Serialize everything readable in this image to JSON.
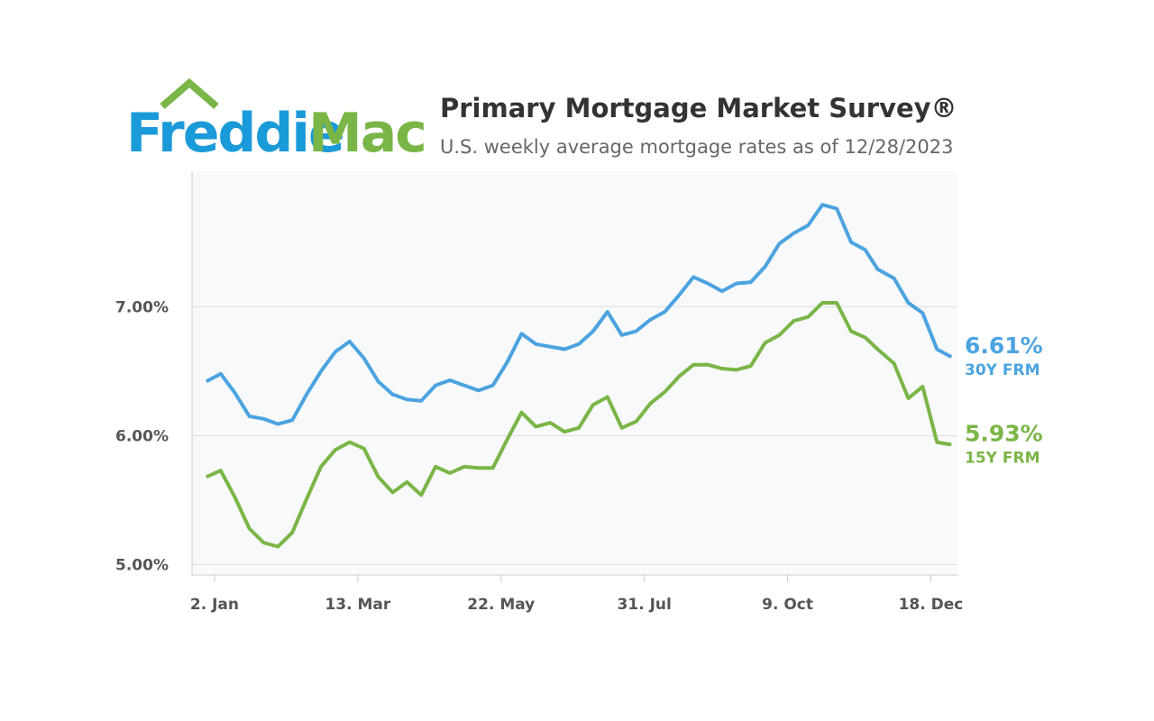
{
  "logo": {
    "part1": "Freddie",
    "part2": "Mac"
  },
  "chart_data": {
    "type": "line",
    "title": "Primary Mortgage Market Survey®",
    "subtitle": "U.S. weekly average mortgage rates as of 12/28/2023",
    "x": [
      "2022-12-29",
      "2023-01-05",
      "2023-01-12",
      "2023-01-19",
      "2023-01-26",
      "2023-02-02",
      "2023-02-09",
      "2023-02-16",
      "2023-02-23",
      "2023-03-02",
      "2023-03-09",
      "2023-03-16",
      "2023-03-23",
      "2023-03-30",
      "2023-04-06",
      "2023-04-13",
      "2023-04-20",
      "2023-04-27",
      "2023-05-04",
      "2023-05-11",
      "2023-05-18",
      "2023-05-25",
      "2023-06-01",
      "2023-06-08",
      "2023-06-15",
      "2023-06-22",
      "2023-06-29",
      "2023-07-06",
      "2023-07-13",
      "2023-07-20",
      "2023-07-27",
      "2023-08-03",
      "2023-08-10",
      "2023-08-17",
      "2023-08-24",
      "2023-08-31",
      "2023-09-07",
      "2023-09-14",
      "2023-09-21",
      "2023-09-28",
      "2023-10-05",
      "2023-10-12",
      "2023-10-19",
      "2023-10-26",
      "2023-11-02",
      "2023-11-09",
      "2023-11-16",
      "2023-11-22",
      "2023-11-30",
      "2023-12-07",
      "2023-12-14",
      "2023-12-21",
      "2023-12-28"
    ],
    "series": [
      {
        "name": "30Y FRM",
        "color": "#4ba3e0",
        "values": [
          6.42,
          6.48,
          6.33,
          6.15,
          6.13,
          6.09,
          6.12,
          6.32,
          6.5,
          6.65,
          6.73,
          6.6,
          6.42,
          6.32,
          6.28,
          6.27,
          6.39,
          6.43,
          6.39,
          6.35,
          6.39,
          6.57,
          6.79,
          6.71,
          6.69,
          6.67,
          6.71,
          6.81,
          6.96,
          6.78,
          6.81,
          6.9,
          6.96,
          7.09,
          7.23,
          7.18,
          7.12,
          7.18,
          7.19,
          7.31,
          7.49,
          7.57,
          7.63,
          7.79,
          7.76,
          7.5,
          7.44,
          7.29,
          7.22,
          7.03,
          6.95,
          6.67,
          6.61
        ],
        "value_labels": [
          null,
          null,
          null,
          null,
          null,
          null,
          null,
          null,
          null,
          null,
          null,
          null,
          null,
          null,
          null,
          null,
          null,
          null,
          null,
          null,
          null,
          null,
          null,
          null,
          null,
          null,
          null,
          null,
          null,
          null,
          null,
          null,
          null,
          null,
          null,
          null,
          null,
          null,
          null,
          null,
          null,
          null,
          null,
          null,
          null,
          null,
          null,
          null,
          null,
          null,
          null,
          null,
          "6.61%"
        ]
      },
      {
        "name": "15Y FRM",
        "color": "#7ab547",
        "values": [
          5.68,
          5.73,
          5.52,
          5.28,
          5.17,
          5.14,
          5.25,
          5.51,
          5.76,
          5.89,
          5.95,
          5.9,
          5.68,
          5.56,
          5.64,
          5.54,
          5.76,
          5.71,
          5.76,
          5.75,
          5.75,
          5.97,
          6.18,
          6.07,
          6.1,
          6.03,
          6.06,
          6.24,
          6.3,
          6.06,
          6.11,
          6.25,
          6.34,
          6.46,
          6.55,
          6.55,
          6.52,
          6.51,
          6.54,
          6.72,
          6.78,
          6.89,
          6.92,
          7.03,
          7.03,
          6.81,
          6.76,
          6.67,
          6.56,
          6.29,
          6.38,
          5.95,
          5.93
        ],
        "value_labels": [
          null,
          null,
          null,
          null,
          null,
          null,
          null,
          null,
          null,
          null,
          null,
          null,
          null,
          null,
          null,
          null,
          null,
          null,
          null,
          null,
          null,
          null,
          null,
          null,
          null,
          null,
          null,
          null,
          null,
          null,
          null,
          null,
          null,
          null,
          null,
          null,
          null,
          null,
          null,
          null,
          null,
          null,
          null,
          null,
          null,
          null,
          null,
          null,
          null,
          null,
          null,
          null,
          "5.93%"
        ]
      }
    ],
    "xlim": [
      "2022-12-22",
      "2023-12-31"
    ],
    "xticks": [
      {
        "value": "2023-01-02",
        "label": "2. Jan"
      },
      {
        "value": "2023-03-13",
        "label": "13. Mar"
      },
      {
        "value": "2023-05-22",
        "label": "22. May"
      },
      {
        "value": "2023-07-31",
        "label": "31. Jul"
      },
      {
        "value": "2023-10-09",
        "label": "9. Oct"
      },
      {
        "value": "2023-12-18",
        "label": "18. Dec"
      }
    ],
    "ylim": [
      4.92,
      8.05
    ],
    "yticks": [
      {
        "value": 5,
        "label": "5.00%"
      },
      {
        "value": 6,
        "label": "6.00%"
      },
      {
        "value": 7,
        "label": "7.00%"
      }
    ],
    "grid": true
  }
}
